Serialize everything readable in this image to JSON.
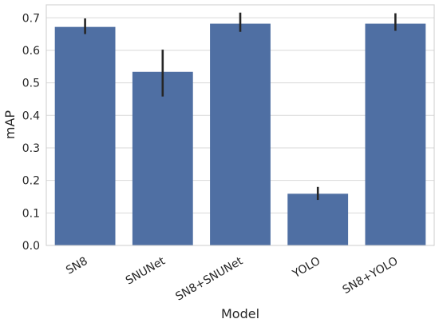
{
  "chart_data": {
    "type": "bar",
    "xlabel": "Model",
    "ylabel": "mAP",
    "categories": [
      "SN8",
      "SNUNet",
      "SN8+SNUNet",
      "YOLO",
      "SN8+YOLO"
    ],
    "values": [
      0.672,
      0.534,
      0.682,
      0.159,
      0.682
    ],
    "error_low": [
      0.65,
      0.458,
      0.657,
      0.14,
      0.66
    ],
    "error_high": [
      0.698,
      0.602,
      0.716,
      0.18,
      0.714
    ],
    "ylim": [
      0,
      0.74
    ],
    "yticks": [
      0.0,
      0.1,
      0.2,
      0.3,
      0.4,
      0.5,
      0.6,
      0.7
    ],
    "ytick_labels": [
      "0.0",
      "0.1",
      "0.2",
      "0.3",
      "0.4",
      "0.5",
      "0.6",
      "0.7"
    ],
    "grid": "horizontal",
    "colors": {
      "bar": "#4f6fa3",
      "errorbar": "#262626",
      "grid": "#d9d9d9",
      "axes_edge": "#cccccc"
    }
  }
}
